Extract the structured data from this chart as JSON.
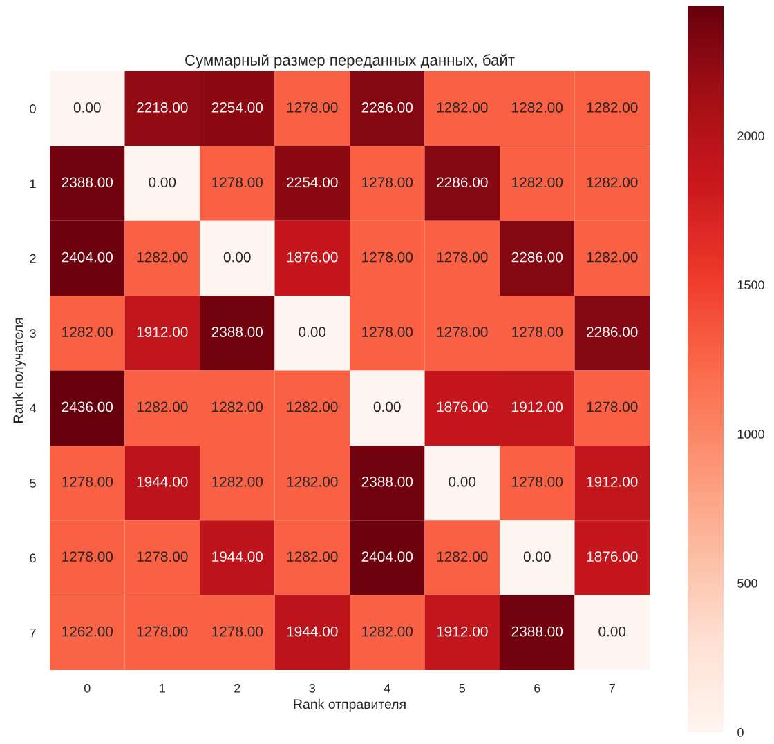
{
  "chart_data": {
    "type": "heatmap",
    "title": "Суммарный размер переданных данных, байт",
    "xlabel": "Rank отправителя",
    "ylabel": "Rank получателя",
    "categories": [
      "0",
      "1",
      "2",
      "3",
      "4",
      "5",
      "6",
      "7"
    ],
    "y_categories": [
      "0",
      "1",
      "2",
      "3",
      "4",
      "5",
      "6",
      "7"
    ],
    "cells": [
      [
        0,
        2218,
        2254,
        1278,
        2286,
        1282,
        1282,
        1282
      ],
      [
        2388,
        0,
        1278,
        2254,
        1278,
        2286,
        1282,
        1282
      ],
      [
        2404,
        1282,
        0,
        1876,
        1278,
        1278,
        2286,
        1282
      ],
      [
        1282,
        1912,
        2388,
        0,
        1278,
        1278,
        1278,
        2286
      ],
      [
        2436,
        1282,
        1282,
        1282,
        0,
        1876,
        1912,
        1278
      ],
      [
        1278,
        1944,
        1282,
        1282,
        2388,
        0,
        1278,
        1912
      ],
      [
        1278,
        1278,
        1944,
        1282,
        2404,
        1282,
        0,
        1876
      ],
      [
        1262,
        1278,
        1278,
        1944,
        1282,
        1912,
        2388,
        0
      ]
    ],
    "cell_labels": [
      [
        "0.00",
        "2218.00",
        "2254.00",
        "1278.00",
        "2286.00",
        "1282.00",
        "1282.00",
        "1282.00"
      ],
      [
        "2388.00",
        "0.00",
        "1278.00",
        "2254.00",
        "1278.00",
        "2286.00",
        "1282.00",
        "1282.00"
      ],
      [
        "2404.00",
        "1282.00",
        "0.00",
        "1876.00",
        "1278.00",
        "1278.00",
        "2286.00",
        "1282.00"
      ],
      [
        "1282.00",
        "1912.00",
        "2388.00",
        "0.00",
        "1278.00",
        "1278.00",
        "1278.00",
        "2286.00"
      ],
      [
        "2436.00",
        "1282.00",
        "1282.00",
        "1282.00",
        "0.00",
        "1876.00",
        "1912.00",
        "1278.00"
      ],
      [
        "1278.00",
        "1944.00",
        "1282.00",
        "1282.00",
        "2388.00",
        "0.00",
        "1278.00",
        "1912.00"
      ],
      [
        "1278.00",
        "1278.00",
        "1944.00",
        "1282.00",
        "2404.00",
        "1282.00",
        "0.00",
        "1876.00"
      ],
      [
        "1262.00",
        "1278.00",
        "1278.00",
        "1944.00",
        "1282.00",
        "1912.00",
        "2388.00",
        "0.00"
      ]
    ],
    "clim": [
      0,
      2436
    ],
    "cticks": [
      0,
      500,
      1000,
      1500,
      2000
    ]
  }
}
